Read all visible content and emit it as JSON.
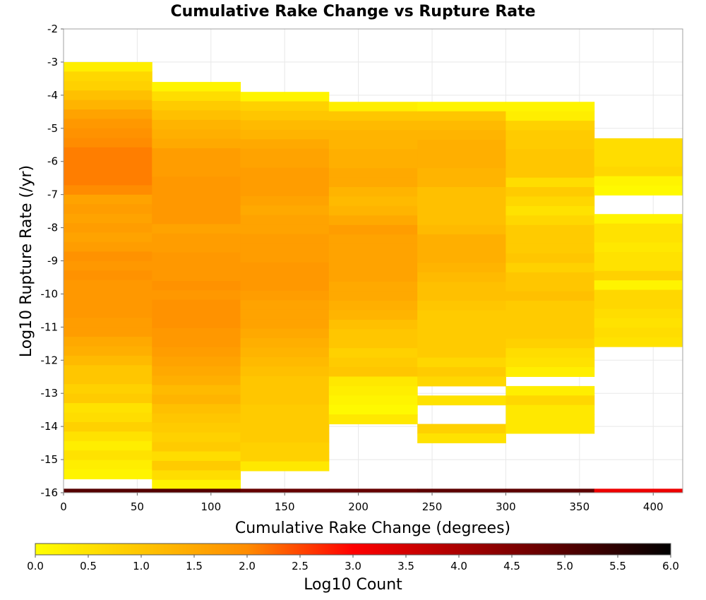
{
  "chart_data": {
    "type": "heatmap",
    "title": "Cumulative Rake Change vs Rupture Rate",
    "xlabel": "Cumulative Rake Change (degrees)",
    "ylabel": "Log10 Rupture Rate (/yr)",
    "xlim": [
      0,
      420
    ],
    "ylim": [
      -16,
      -2
    ],
    "x_ticks": [
      "0",
      "50",
      "100",
      "150",
      "200",
      "250",
      "300",
      "350",
      "400"
    ],
    "y_ticks": [
      "-2",
      "-3",
      "-4",
      "-5",
      "-6",
      "-7",
      "-8",
      "-9",
      "-10",
      "-11",
      "-12",
      "-13",
      "-14",
      "-15",
      "-16"
    ],
    "grid": true,
    "x_bin_width": 60,
    "y_bin_height": 0.286,
    "colorbar": {
      "label": "Log10 Count",
      "range": [
        0,
        6
      ],
      "ticks": [
        "0.0",
        "0.5",
        "1.0",
        "1.5",
        "2.0",
        "2.5",
        "3.0",
        "3.5",
        "4.0",
        "4.5",
        "5.0",
        "5.5",
        "6.0"
      ],
      "colors": [
        "#ffff00",
        "#ff8c00",
        "#ff0000",
        "#000000"
      ]
    },
    "columns": [
      {
        "x": 0,
        "top": -3.0,
        "values": [
          0.3,
          0.7,
          0.8,
          1.1,
          1.3,
          1.6,
          1.8,
          1.9,
          2.0,
          2.1,
          2.1,
          2.1,
          2.1,
          2.0,
          1.6,
          1.7,
          1.6,
          1.7,
          1.6,
          1.7,
          1.9,
          1.8,
          1.9,
          1.8,
          1.8,
          1.8,
          1.8,
          1.7,
          1.7,
          1.5,
          1.4,
          1.2,
          1.0,
          1.0,
          0.8,
          0.9,
          0.5,
          0.6,
          0.8,
          0.5,
          0.3,
          0.5,
          0.3,
          0.2
        ]
      },
      {
        "x": 60,
        "top": -3.6,
        "values": [
          0.2,
          0.6,
          0.9,
          1.1,
          1.3,
          1.4,
          1.5,
          1.7,
          1.7,
          1.7,
          1.8,
          1.8,
          1.8,
          1.8,
          1.8,
          1.6,
          1.7,
          1.7,
          1.8,
          1.8,
          1.8,
          1.9,
          1.8,
          1.9,
          1.9,
          1.9,
          1.8,
          1.8,
          1.7,
          1.6,
          1.5,
          1.4,
          1.2,
          1.3,
          1.1,
          1.0,
          0.9,
          0.8,
          0.9,
          0.6,
          0.9,
          0.6,
          0.2,
          0.0,
          0.2
        ]
      },
      {
        "x": 120,
        "top": -3.9,
        "values": [
          0.2,
          0.8,
          1.0,
          1.2,
          1.3,
          1.5,
          1.6,
          1.6,
          1.7,
          1.7,
          1.7,
          1.6,
          1.5,
          1.6,
          1.6,
          1.7,
          1.7,
          1.7,
          1.8,
          1.8,
          1.8,
          1.7,
          1.6,
          1.6,
          1.6,
          1.5,
          1.4,
          1.3,
          1.2,
          1.1,
          1.0,
          1.0,
          1.0,
          0.9,
          0.9,
          0.9,
          0.9,
          0.8,
          0.8,
          0.4
        ]
      },
      {
        "x": 180,
        "top": -4.2,
        "values": [
          0.3,
          1.0,
          1.2,
          1.3,
          1.3,
          1.4,
          1.4,
          1.5,
          1.5,
          1.3,
          1.2,
          1.3,
          1.5,
          1.7,
          1.6,
          1.6,
          1.6,
          1.6,
          1.6,
          1.5,
          1.5,
          1.4,
          1.3,
          1.1,
          1.0,
          1.0,
          0.8,
          0.9,
          1.0,
          0.4,
          0.3,
          0.2,
          0.1,
          0.4
        ]
      },
      {
        "x": 240,
        "top": -4.2,
        "values": [
          0.2,
          1.0,
          1.2,
          1.3,
          1.4,
          1.4,
          1.4,
          1.3,
          1.3,
          1.1,
          1.1,
          1.1,
          1.1,
          1.2,
          1.4,
          1.4,
          1.4,
          1.3,
          1.2,
          1.1,
          1.1,
          1.0,
          0.9,
          0.9,
          0.9,
          0.9,
          0.9,
          0.7,
          0.9,
          0.7,
          null,
          0.5,
          null,
          null,
          0.8,
          0.5
        ]
      },
      {
        "x": 300,
        "top": -4.2,
        "values": [
          0.2,
          0.3,
          0.8,
          0.9,
          0.9,
          1.0,
          1.0,
          1.0,
          0.6,
          0.9,
          0.7,
          0.5,
          0.7,
          0.9,
          0.9,
          0.9,
          1.0,
          0.8,
          1.0,
          1.0,
          1.1,
          0.9,
          0.9,
          0.9,
          0.9,
          0.8,
          0.6,
          0.5,
          0.3,
          null,
          0.3,
          0.7,
          0.4,
          0.4,
          0.4
        ]
      },
      {
        "x": 360,
        "top": -5.3,
        "values": [
          0.6,
          0.6,
          0.6,
          0.7,
          0.2,
          0.1,
          null,
          null,
          0.2,
          0.5,
          0.5,
          0.4,
          0.5,
          0.5,
          0.8,
          0.2,
          0.7,
          0.7,
          0.6,
          0.5,
          0.6,
          0.5
        ]
      }
    ],
    "bottom_band": {
      "y": -16,
      "values": [
        5.0,
        5.0,
        4.8,
        4.8,
        4.9,
        4.9,
        3.2
      ]
    }
  }
}
